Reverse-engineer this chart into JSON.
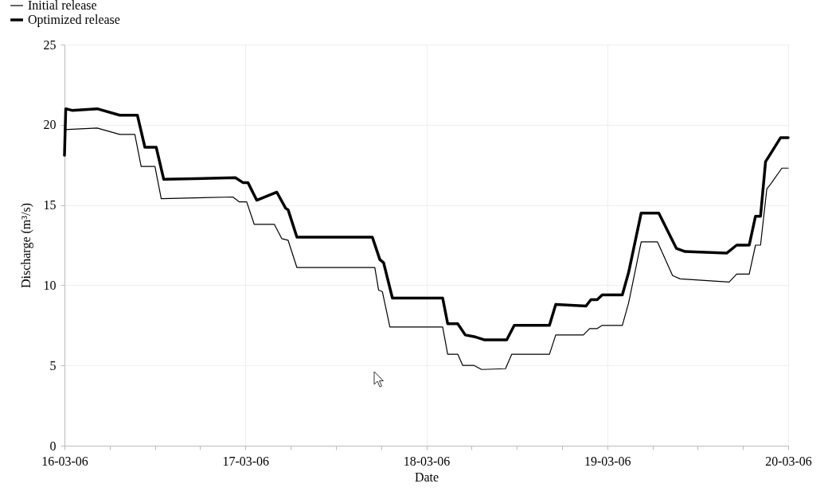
{
  "chart_data": {
    "type": "line",
    "xlabel": "Date",
    "ylabel": "Discharge (m³/s)",
    "ylim": [
      0,
      25
    ],
    "yticks": [
      0,
      5,
      10,
      15,
      20,
      25
    ],
    "xlim": [
      "--03-16T00:00",
      "--03-20T00:00"
    ],
    "xticks": [
      {
        "value": "--03-16T00:00",
        "label": "16-03-06"
      },
      {
        "value": "--03-16T06:00",
        "label": null
      },
      {
        "value": "--03-16T12:00",
        "label": null
      },
      {
        "value": "--03-16T18:00",
        "label": null
      },
      {
        "value": "--03-17T00:00",
        "label": "17-03-06"
      },
      {
        "value": "--03-17T06:00",
        "label": null
      },
      {
        "value": "--03-17T12:00",
        "label": null
      },
      {
        "value": "--03-17T18:00",
        "label": null
      },
      {
        "value": "--03-18T00:00",
        "label": "18-03-06"
      },
      {
        "value": "--03-18T06:00",
        "label": null
      },
      {
        "value": "--03-18T12:00",
        "label": null
      },
      {
        "value": "--03-18T18:00",
        "label": null
      },
      {
        "value": "--03-19T00:00",
        "label": "19-03-06"
      },
      {
        "value": "--03-19T06:00",
        "label": null
      },
      {
        "value": "--03-19T12:00",
        "label": null
      },
      {
        "value": "--03-19T18:00",
        "label": null
      },
      {
        "value": "--03-20T00:00",
        "label": "20-03-06"
      }
    ],
    "grid": true,
    "legend": "top left",
    "marker": "none",
    "line_style": "solid",
    "series": [
      {
        "name": "Initial release",
        "color": "#000000",
        "x": [
          "--03-16T00:00",
          "--03-16T04:20",
          "--03-16T07:20",
          "--03-16T09:20",
          "--03-16T10:10",
          "--03-16T12:00",
          "--03-16T12:50",
          "--03-16T22:20",
          "--03-16T23:10",
          "--03-17T00:10",
          "--03-17T01:10",
          "--03-17T03:50",
          "--03-17T04:50",
          "--03-17T05:40",
          "--03-17T06:50",
          "--03-17T17:10",
          "--03-17T17:40",
          "--03-17T18:10",
          "--03-17T19:10",
          "--03-18T02:10",
          "--03-18T02:50",
          "--03-18T04:10",
          "--03-18T04:50",
          "--03-18T06:20",
          "--03-18T07:20",
          "--03-18T10:30",
          "--03-18T11:20",
          "--03-18T16:20",
          "--03-18T17:10",
          "--03-18T20:50",
          "--03-18T21:40",
          "--03-18T22:40",
          "--03-18T23:20",
          "--03-19T02:00",
          "--03-19T02:50",
          "--03-19T04:30",
          "--03-19T06:40",
          "--03-19T08:40",
          "--03-19T09:40",
          "--03-19T16:10",
          "--03-19T17:10",
          "--03-19T18:50",
          "--03-19T19:40",
          "--03-19T20:20",
          "--03-19T21:10",
          "--03-19T21:40",
          "--03-19T23:10",
          "--03-20T00:00"
        ],
        "values": [
          19.7,
          19.8,
          19.4,
          19.4,
          17.4,
          17.4,
          15.4,
          15.5,
          15.2,
          15.2,
          13.8,
          13.8,
          12.9,
          12.8,
          11.1,
          11.1,
          9.7,
          9.6,
          7.4,
          7.4,
          5.7,
          5.7,
          5.0,
          5.0,
          4.75,
          4.8,
          5.7,
          5.7,
          6.9,
          6.9,
          7.3,
          7.3,
          7.5,
          7.5,
          8.9,
          12.7,
          12.7,
          10.6,
          10.4,
          10.2,
          10.7,
          10.7,
          12.5,
          12.5,
          16.0,
          16.3,
          17.3,
          17.3
        ]
      },
      {
        "name": "Optimized release",
        "color": "#000000",
        "x": [
          "--03-16T00:00",
          "--03-16T00:10",
          "--03-16T01:00",
          "--03-16T04:20",
          "--03-16T07:20",
          "--03-16T09:40",
          "--03-16T10:40",
          "--03-16T12:10",
          "--03-16T13:10",
          "--03-16T22:40",
          "--03-16T23:40",
          "--03-17T00:20",
          "--03-17T01:30",
          "--03-17T04:10",
          "--03-17T05:20",
          "--03-17T05:40",
          "--03-17T06:50",
          "--03-17T16:50",
          "--03-17T17:50",
          "--03-17T18:20",
          "--03-17T19:30",
          "--03-18T02:10",
          "--03-18T02:50",
          "--03-18T04:10",
          "--03-18T05:10",
          "--03-18T06:20",
          "--03-18T07:40",
          "--03-18T10:40",
          "--03-18T11:40",
          "--03-18T16:20",
          "--03-18T17:10",
          "--03-18T21:10",
          "--03-18T21:50",
          "--03-18T22:40",
          "--03-18T23:20",
          "--03-19T02:00",
          "--03-19T02:50",
          "--03-19T04:30",
          "--03-19T06:50",
          "--03-19T09:10",
          "--03-19T10:20",
          "--03-19T15:50",
          "--03-19T17:10",
          "--03-19T18:50",
          "--03-19T19:40",
          "--03-19T20:20",
          "--03-19T21:00",
          "--03-19T21:40",
          "--03-19T23:00",
          "--03-20T00:00"
        ],
        "values": [
          18.1,
          21.0,
          20.9,
          21.0,
          20.6,
          20.6,
          18.6,
          18.6,
          16.6,
          16.7,
          16.4,
          16.4,
          15.3,
          15.8,
          14.8,
          14.7,
          13.0,
          13.0,
          11.6,
          11.4,
          9.2,
          9.2,
          7.6,
          7.6,
          6.9,
          6.8,
          6.6,
          6.6,
          7.5,
          7.5,
          8.8,
          8.7,
          9.1,
          9.1,
          9.4,
          9.4,
          10.8,
          14.5,
          14.5,
          12.3,
          12.1,
          12.0,
          12.5,
          12.5,
          14.3,
          14.3,
          17.7,
          18.2,
          19.2,
          19.2
        ]
      }
    ]
  }
}
